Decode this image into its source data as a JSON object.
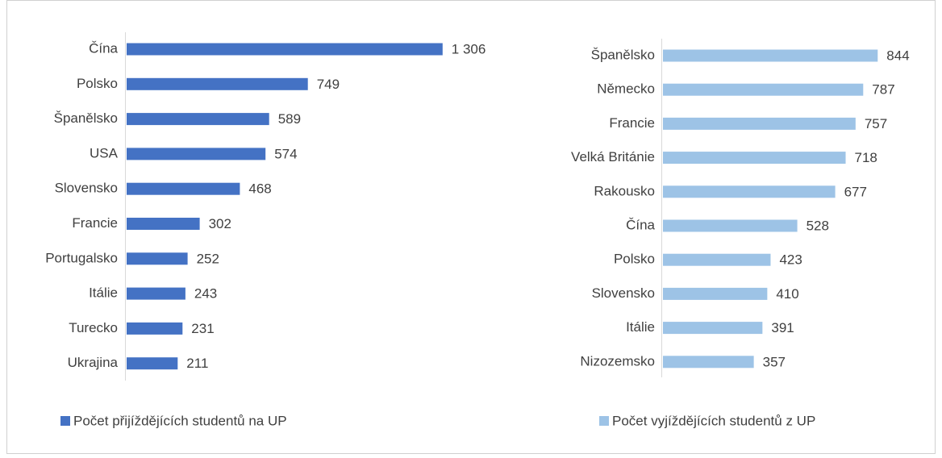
{
  "chart_data": [
    {
      "type": "bar",
      "orientation": "horizontal",
      "categories": [
        "Čína",
        "Polsko",
        "Španělsko",
        "USA",
        "Slovensko",
        "Francie",
        "Portugalsko",
        "Itálie",
        "Turecko",
        "Ukrajina"
      ],
      "series": [
        {
          "name": "Počet přijíždějících studentů na UP",
          "color": "#4472c4",
          "values": [
            1306,
            749,
            589,
            574,
            468,
            302,
            252,
            243,
            231,
            211
          ],
          "value_labels": [
            "1 306",
            "749",
            "589",
            "574",
            "468",
            "302",
            "252",
            "243",
            "231",
            "211"
          ]
        }
      ]
    },
    {
      "type": "bar",
      "orientation": "horizontal",
      "categories": [
        "Španělsko",
        "Německo",
        "Francie",
        "Velká Británie",
        "Rakousko",
        "Čína",
        "Polsko",
        "Slovensko",
        "Itálie",
        "Nizozemsko"
      ],
      "series": [
        {
          "name": "Počet vyjíždějících studentů z UP",
          "color": "#9dc3e6",
          "values": [
            844,
            787,
            757,
            718,
            677,
            528,
            423,
            410,
            391,
            357
          ]
        }
      ]
    }
  ]
}
